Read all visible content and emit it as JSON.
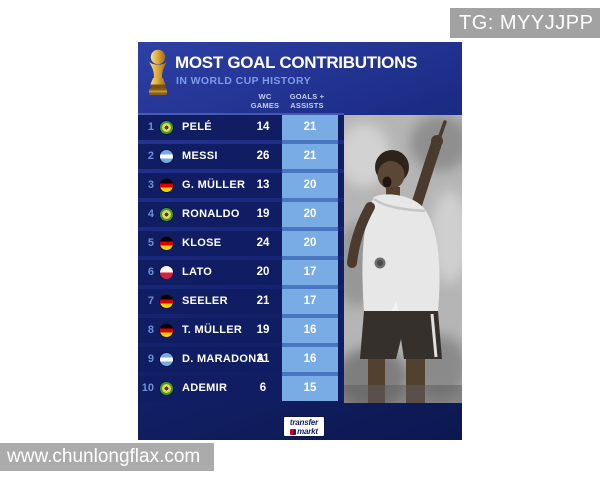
{
  "watermarks": {
    "top_right": "TG: MYYJJPP",
    "bottom_left": "www.chunlongflax.com"
  },
  "chart_data": {
    "type": "table",
    "title": "MOST GOAL CONTRIBUTIONS",
    "subtitle": "IN WORLD CUP HISTORY",
    "columns": [
      {
        "id": "wc_games",
        "label_line1": "WC",
        "label_line2": "GAMES"
      },
      {
        "id": "goals_assists",
        "label_line1": "GOALS +",
        "label_line2": "ASSISTS"
      }
    ],
    "highlight_column": "goals_assists",
    "rows": [
      {
        "rank": "1",
        "flag": "brazil",
        "name": "PELÉ",
        "wc_games": "14",
        "goals_assists": "21"
      },
      {
        "rank": "2",
        "flag": "argentina",
        "name": "MESSI",
        "wc_games": "26",
        "goals_assists": "21"
      },
      {
        "rank": "3",
        "flag": "germany",
        "name": "G. MÜLLER",
        "wc_games": "13",
        "goals_assists": "20"
      },
      {
        "rank": "4",
        "flag": "brazil",
        "name": "RONALDO",
        "wc_games": "19",
        "goals_assists": "20"
      },
      {
        "rank": "5",
        "flag": "germany",
        "name": "KLOSE",
        "wc_games": "24",
        "goals_assists": "20"
      },
      {
        "rank": "6",
        "flag": "poland",
        "name": "LATO",
        "wc_games": "20",
        "goals_assists": "17"
      },
      {
        "rank": "7",
        "flag": "germany",
        "name": "SEELER",
        "wc_games": "21",
        "goals_assists": "17"
      },
      {
        "rank": "8",
        "flag": "germany",
        "name": "T. MÜLLER",
        "wc_games": "19",
        "goals_assists": "16"
      },
      {
        "rank": "9",
        "flag": "argentina",
        "name": "D. MARADONA",
        "wc_games": "21",
        "goals_assists": "16"
      },
      {
        "rank": "10",
        "flag": "brazil",
        "name": "ADEMIR",
        "wc_games": "6",
        "goals_assists": "15"
      }
    ]
  },
  "brand": {
    "logo_line1": "transfer",
    "logo_line2": "markt"
  },
  "icons": {
    "trophy": "world-cup-trophy-icon",
    "photo": "pele-celebration-photo"
  },
  "colors": {
    "card_navy_top": "#2e40a6",
    "card_navy_bottom": "#0c1850",
    "row_navy": "#101d62",
    "highlight_cell_blue": "#79ace4",
    "highlight_strip_blue": "#4a75c0",
    "subtitle_blue": "#7d9ce6",
    "rank_blue": "#6b90d8",
    "trophy_gold": "#d9a63a",
    "watermark_gray": "#a2a2a2",
    "logo_navy": "#15226b",
    "logo_red": "#d6001c"
  }
}
